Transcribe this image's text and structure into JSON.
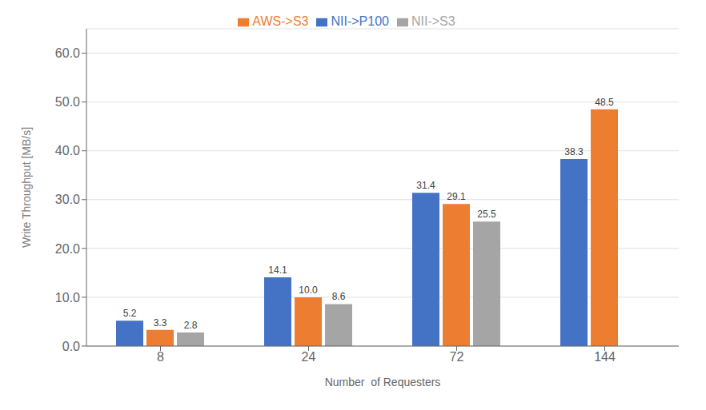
{
  "chart_data": {
    "type": "bar",
    "categories": [
      "8",
      "24",
      "72",
      "144"
    ],
    "series": [
      {
        "name": "NII->P100",
        "color": "#4472C4",
        "values": [
          5.2,
          14.1,
          31.4,
          38.3
        ],
        "value_labels": [
          "5.2",
          "14.1",
          "31.4",
          "38.3"
        ]
      },
      {
        "name": "AWS->S3",
        "color": "#ED7D31",
        "values": [
          3.3,
          10.0,
          29.1,
          48.5
        ],
        "value_labels": [
          "3.3",
          "10.0",
          "29.1",
          "48.5"
        ]
      },
      {
        "name": "NII->S3",
        "color": "#A5A5A5",
        "values": [
          2.8,
          8.6,
          25.5,
          null
        ],
        "value_labels": [
          "2.8",
          "8.6",
          "25.5",
          null
        ]
      }
    ],
    "xlabel": "Number  of Requesters",
    "ylabel": "Write Throughput [MB/s]",
    "ylim": [
      0,
      65
    ],
    "yticks": [
      {
        "value": 0,
        "label": "0.0"
      },
      {
        "value": 10,
        "label": "10.0"
      },
      {
        "value": 20,
        "label": "20.0"
      },
      {
        "value": 30,
        "label": "30.0"
      },
      {
        "value": 40,
        "label": "40.0"
      },
      {
        "value": 50,
        "label": "50.0"
      },
      {
        "value": 60,
        "label": "60.0"
      }
    ],
    "grid": true,
    "legend": "top",
    "data_labels": true
  }
}
